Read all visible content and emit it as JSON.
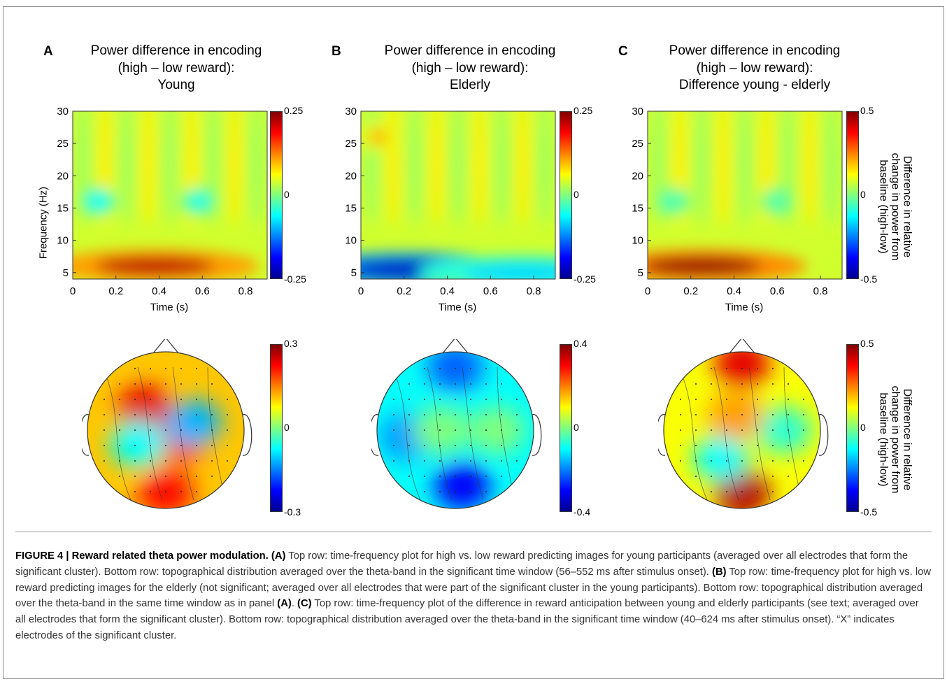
{
  "panels": [
    {
      "label": "A",
      "title": [
        "Power difference in encoding",
        "(high – low reward):",
        "Young"
      ],
      "xlabel": "Time (s)",
      "ylabel": "Frequency (Hz)",
      "xticks": [
        "0",
        "0.2",
        "0.4",
        "0.6",
        "0.8"
      ],
      "yticks": [
        "30",
        "25",
        "20",
        "15",
        "10",
        "5"
      ],
      "tf_cbar": {
        "max": "0.25",
        "mid": "0",
        "min": "-0.25"
      },
      "topo_cbar": {
        "max": "0.3",
        "mid": "0",
        "min": "-0.3"
      }
    },
    {
      "label": "B",
      "title": [
        "Power difference in encoding",
        "(high – low reward):",
        "Elderly"
      ],
      "xlabel": "Time (s)",
      "ylabel": "",
      "xticks": [
        "0",
        "0.2",
        "0.4",
        "0.6",
        "0.8"
      ],
      "yticks": [
        "30",
        "25",
        "20",
        "15",
        "10",
        "5"
      ],
      "tf_cbar": {
        "max": "0.25",
        "mid": "0",
        "min": "-0.25"
      },
      "topo_cbar": {
        "max": "0.4",
        "mid": "0",
        "min": "-0.4"
      }
    },
    {
      "label": "C",
      "title": [
        "Power difference in encoding",
        "(high – low reward):",
        "Difference young - elderly"
      ],
      "xlabel": "Time (s)",
      "ylabel": "",
      "xticks": [
        "0",
        "0.2",
        "0.4",
        "0.6",
        "0.8"
      ],
      "yticks": [
        "30",
        "25",
        "20",
        "15",
        "10",
        "5"
      ],
      "tf_cbar": {
        "max": "0.5",
        "mid": "0",
        "min": "-0.5"
      },
      "topo_cbar": {
        "max": "0.5",
        "mid": "0",
        "min": "-0.5"
      },
      "cbar_title": [
        "Difference in relative",
        "change in power from",
        "baseline (high-low)"
      ]
    }
  ],
  "chart_data": [
    {
      "type": "heatmap",
      "panel": "A",
      "x_range": [
        0,
        0.9
      ],
      "y_range": [
        4,
        30
      ],
      "color_range": [
        -0.25,
        0.25
      ],
      "colormap": "jet",
      "features": [
        {
          "time_s": 0.38,
          "freq_hz": 6,
          "value": 0.22
        },
        {
          "time_s": 0.12,
          "freq_hz": 16,
          "value": -0.06
        },
        {
          "time_s": 0.58,
          "freq_hz": 16,
          "value": -0.05
        }
      ]
    },
    {
      "type": "heatmap",
      "panel": "B",
      "x_range": [
        0,
        0.9
      ],
      "y_range": [
        4,
        30
      ],
      "color_range": [
        -0.25,
        0.25
      ],
      "colormap": "jet",
      "features": [
        {
          "time_s": 0.22,
          "freq_hz": 5.5,
          "value": -0.22
        },
        {
          "time_s": 0.75,
          "freq_hz": 5,
          "value": -0.08
        },
        {
          "time_s": 0.08,
          "freq_hz": 26,
          "value": 0.1
        }
      ]
    },
    {
      "type": "heatmap",
      "panel": "C",
      "x_range": [
        0,
        0.9
      ],
      "y_range": [
        4,
        30
      ],
      "color_range": [
        -0.5,
        0.5
      ],
      "colormap": "jet",
      "features": [
        {
          "time_s": 0.25,
          "freq_hz": 6,
          "value": 0.48
        },
        {
          "time_s": 0.12,
          "freq_hz": 16,
          "value": -0.05
        },
        {
          "time_s": 0.6,
          "freq_hz": 16,
          "value": -0.04
        }
      ]
    }
  ],
  "caption": {
    "fig": "FIGURE 4 | Reward related theta power modulation.",
    "a_label": "(A)",
    "a_text": " Top row: time-frequency plot for high vs. low reward predicting images for young participants (averaged over all electrodes that form the significant cluster). Bottom row: topographical distribution averaged over the theta-band in the significant time window (56–552 ms after stimulus onset). ",
    "b_label": "(B)",
    "b_text": " Top row: time-frequency plot for high vs. low reward predicting images for the elderly (not significant; averaged over all electrodes that were part of the significant cluster in the young participants). Bottom row: topographical distribution averaged over the theta-band in the same time window as in panel ",
    "a_ref": "(A)",
    "mid": ". ",
    "c_label": "(C)",
    "c_text": " Top row: time-frequency plot of the difference in reward anticipation between young and elderly participants (see text; averaged over all electrodes that form the significant cluster). Bottom row: topographical distribution averaged over the theta-band in the significant time window (40–624 ms after stimulus onset). “X” indicates electrodes of the significant cluster."
  }
}
